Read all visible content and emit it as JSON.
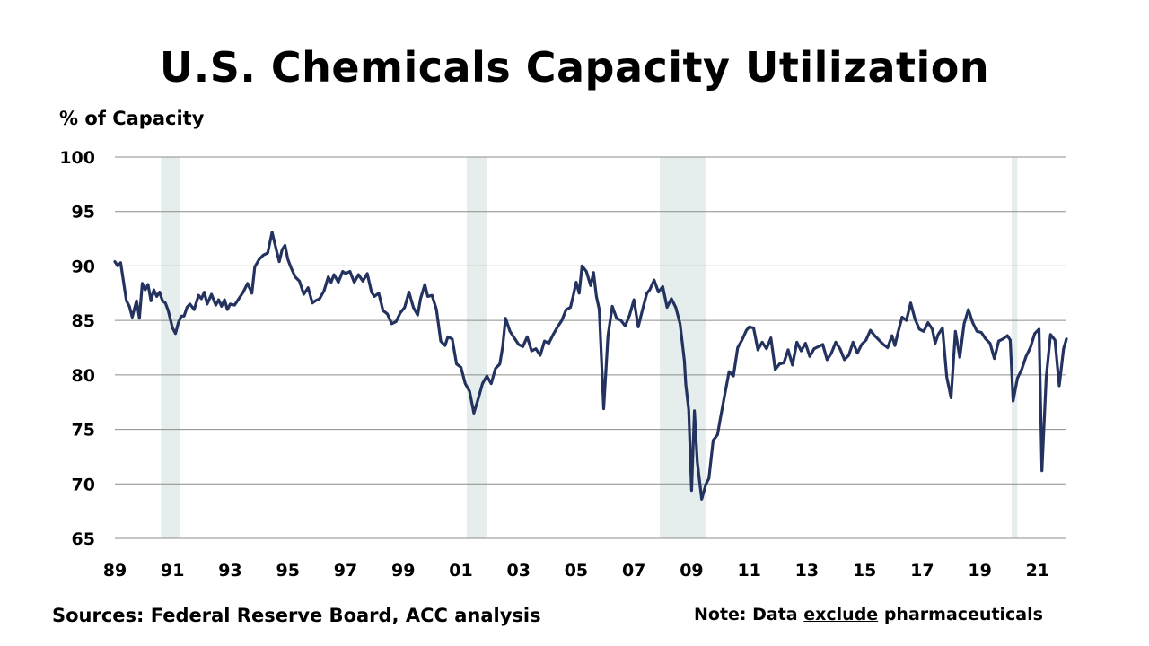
{
  "chart_data": {
    "type": "line",
    "title": "U.S. Chemicals Capacity Utilization",
    "ylabel": "% of Capacity",
    "xlabel": "",
    "ylim": [
      65,
      100
    ],
    "xlim": [
      1989.0,
      2022.0
    ],
    "yticks": [
      "100",
      "95",
      "90",
      "85",
      "80",
      "75",
      "70",
      "65"
    ],
    "ytick_values": [
      100,
      95,
      90,
      85,
      80,
      75,
      70,
      65
    ],
    "xticks": [
      "89",
      "91",
      "93",
      "95",
      "97",
      "99",
      "01",
      "03",
      "05",
      "07",
      "09",
      "11",
      "13",
      "15",
      "17",
      "19",
      "21"
    ],
    "xtick_values": [
      1989,
      1991,
      1993,
      1995,
      1997,
      1999,
      2001,
      2003,
      2005,
      2007,
      2009,
      2011,
      2013,
      2015,
      2017,
      2019,
      2021
    ],
    "grid": true,
    "line_color": "#24325f",
    "recession_color": "#e6eeed",
    "recessions": [
      [
        1990.6,
        1991.25
      ],
      [
        2001.2,
        2001.9
      ],
      [
        2007.9,
        2009.5
      ],
      [
        2020.1,
        2020.3
      ]
    ],
    "series": [
      {
        "x": [
          1989.0,
          1989.1,
          1989.2,
          1989.4,
          1989.5,
          1989.6,
          1989.75,
          1989.85,
          1989.95,
          1990.05,
          1990.15,
          1990.25,
          1990.35,
          1990.45,
          1990.55,
          1990.65,
          1990.75,
          1990.85,
          1991.0,
          1991.1,
          1991.2,
          1991.3,
          1991.4,
          1991.5,
          1991.6,
          1991.75,
          1991.9,
          1992.0,
          1992.1,
          1992.2,
          1992.35,
          1992.5,
          1992.6,
          1992.7,
          1992.8,
          1992.9,
          1993.0,
          1993.15,
          1993.3,
          1993.45,
          1993.6,
          1993.75,
          1993.85,
          1994.0,
          1994.15,
          1994.3,
          1994.45,
          1994.55,
          1994.7,
          1994.8,
          1994.9,
          1995.0,
          1995.1,
          1995.25,
          1995.4,
          1995.55,
          1995.7,
          1995.85,
          1995.95,
          1996.1,
          1996.25,
          1996.4,
          1996.5,
          1996.6,
          1996.75,
          1996.9,
          1997.0,
          1997.15,
          1997.3,
          1997.45,
          1997.6,
          1997.75,
          1997.9,
          1998.0,
          1998.15,
          1998.3,
          1998.45,
          1998.6,
          1998.75,
          1998.9,
          1999.05,
          1999.2,
          1999.35,
          1999.5,
          1999.6,
          1999.75,
          1999.85,
          2000.0,
          2000.15,
          2000.3,
          2000.45,
          2000.55,
          2000.7,
          2000.85,
          2001.0,
          2001.15,
          2001.3,
          2001.45,
          2001.6,
          2001.75,
          2001.9,
          2002.05,
          2002.2,
          2002.35,
          2002.45,
          2002.55,
          2002.7,
          2002.85,
          2003.0,
          2003.15,
          2003.3,
          2003.45,
          2003.6,
          2003.75,
          2003.9,
          2004.05,
          2004.2,
          2004.35,
          2004.5,
          2004.65,
          2004.8,
          2004.9,
          2005.0,
          2005.1,
          2005.2,
          2005.35,
          2005.5,
          2005.6,
          2005.7,
          2005.8,
          2005.95,
          2006.1,
          2006.25,
          2006.4,
          2006.55,
          2006.7,
          2006.85,
          2007.0,
          2007.15,
          2007.3,
          2007.45,
          2007.55,
          2007.7,
          2007.85,
          2008.0,
          2008.15,
          2008.3,
          2008.45,
          2008.6,
          2008.75,
          2008.8,
          2008.9,
          2009.0,
          2009.1,
          2009.2,
          2009.35,
          2009.5,
          2009.6,
          2009.75,
          2009.9,
          2010.0,
          2010.15,
          2010.3,
          2010.45,
          2010.6,
          2010.75,
          2010.9,
          2011.0,
          2011.15,
          2011.3,
          2011.45,
          2011.6,
          2011.75,
          2011.9,
          2012.05,
          2012.2,
          2012.35,
          2012.5,
          2012.65,
          2012.8,
          2012.95,
          2013.1,
          2013.25,
          2013.4,
          2013.55,
          2013.7,
          2013.85,
          2014.0,
          2014.15,
          2014.3,
          2014.45,
          2014.6,
          2014.75,
          2014.9,
          2015.05,
          2015.2,
          2015.35,
          2015.5,
          2015.65,
          2015.8,
          2015.95,
          2016.05,
          2016.15,
          2016.3,
          2016.45,
          2016.6,
          2016.75,
          2016.9,
          2017.05,
          2017.2,
          2017.35,
          2017.45,
          2017.55,
          2017.7,
          2017.85,
          2018.0,
          2018.15,
          2018.3,
          2018.45,
          2018.6,
          2018.75,
          2018.9,
          2019.05,
          2019.2,
          2019.35,
          2019.5,
          2019.65,
          2019.8,
          2019.95,
          2020.05,
          2020.15,
          2020.3,
          2020.45,
          2020.6,
          2020.75,
          2020.9,
          2021.05,
          2021.15,
          2021.3,
          2021.45,
          2021.6,
          2021.75,
          2021.9,
          2022.0
        ],
        "y": [
          90.4,
          90.0,
          90.3,
          86.8,
          86.3,
          85.3,
          86.8,
          85.2,
          88.4,
          87.8,
          88.3,
          86.8,
          87.8,
          87.2,
          87.6,
          86.8,
          86.6,
          85.9,
          84.3,
          83.8,
          84.8,
          85.4,
          85.4,
          86.2,
          86.5,
          86.0,
          87.3,
          87.0,
          87.6,
          86.5,
          87.4,
          86.4,
          86.9,
          86.3,
          86.9,
          86.0,
          86.5,
          86.4,
          87.0,
          87.6,
          88.4,
          87.5,
          89.9,
          90.6,
          91.0,
          91.2,
          93.1,
          92.0,
          90.4,
          91.5,
          91.9,
          90.6,
          89.9,
          89.0,
          88.6,
          87.4,
          88.0,
          86.6,
          86.8,
          87.0,
          87.7,
          89.0,
          88.5,
          89.2,
          88.5,
          89.5,
          89.3,
          89.5,
          88.5,
          89.2,
          88.6,
          89.3,
          87.6,
          87.2,
          87.5,
          85.9,
          85.6,
          84.7,
          84.9,
          85.7,
          86.2,
          87.6,
          86.2,
          85.5,
          87.0,
          88.3,
          87.2,
          87.3,
          86.0,
          83.1,
          82.7,
          83.5,
          83.3,
          81.0,
          80.7,
          79.2,
          78.5,
          76.5,
          77.8,
          79.2,
          79.9,
          79.2,
          80.6,
          81.0,
          82.6,
          85.2,
          84.0,
          83.4,
          82.8,
          82.6,
          83.5,
          82.2,
          82.4,
          81.8,
          83.1,
          82.9,
          83.7,
          84.4,
          85.0,
          86.0,
          86.2,
          87.3,
          88.5,
          87.5,
          90.0,
          89.5,
          88.2,
          89.4,
          87.2,
          86.0,
          76.9,
          83.6,
          86.3,
          85.2,
          85.0,
          84.5,
          85.5,
          86.9,
          84.4,
          86.0,
          87.5,
          87.8,
          88.7,
          87.6,
          88.1,
          86.2,
          87.0,
          86.2,
          84.7,
          81.3,
          79.1,
          76.8,
          69.4,
          76.7,
          72.0,
          68.6,
          70.0,
          70.5,
          74.0,
          74.5,
          76.0,
          78.2,
          80.3,
          79.9,
          82.5,
          83.2,
          84.1,
          84.4,
          84.3,
          82.3,
          83.0,
          82.4,
          83.4,
          80.5,
          81.0,
          81.1,
          82.3,
          80.9,
          83.0,
          82.2,
          82.9,
          81.7,
          82.4,
          82.6,
          82.8,
          81.4,
          82.0,
          83.0,
          82.4,
          81.4,
          81.8,
          83.0,
          82.0,
          82.8,
          83.2,
          84.1,
          83.6,
          83.2,
          82.8,
          82.5,
          83.6,
          82.7,
          83.8,
          85.3,
          85.0,
          86.6,
          85.1,
          84.2,
          84.0,
          84.8,
          84.2,
          82.9,
          83.7,
          84.3,
          79.8,
          77.9,
          84.0,
          81.6,
          84.7,
          86.0,
          84.8,
          84.0,
          83.9,
          83.3,
          82.9,
          81.5,
          83.1,
          83.3,
          83.6,
          83.2,
          77.6,
          79.7,
          80.5,
          81.7,
          82.5,
          83.8,
          84.2,
          71.2,
          79.8,
          83.7,
          83.2,
          79.0,
          82.4,
          83.3
        ]
      }
    ]
  },
  "footer": {
    "source": "Sources: Federal Reserve Board, ACC analysis",
    "note_prefix": "Note: Data",
    "note_emph": "exclude",
    "note_suffix": "pharmaceuticals"
  }
}
